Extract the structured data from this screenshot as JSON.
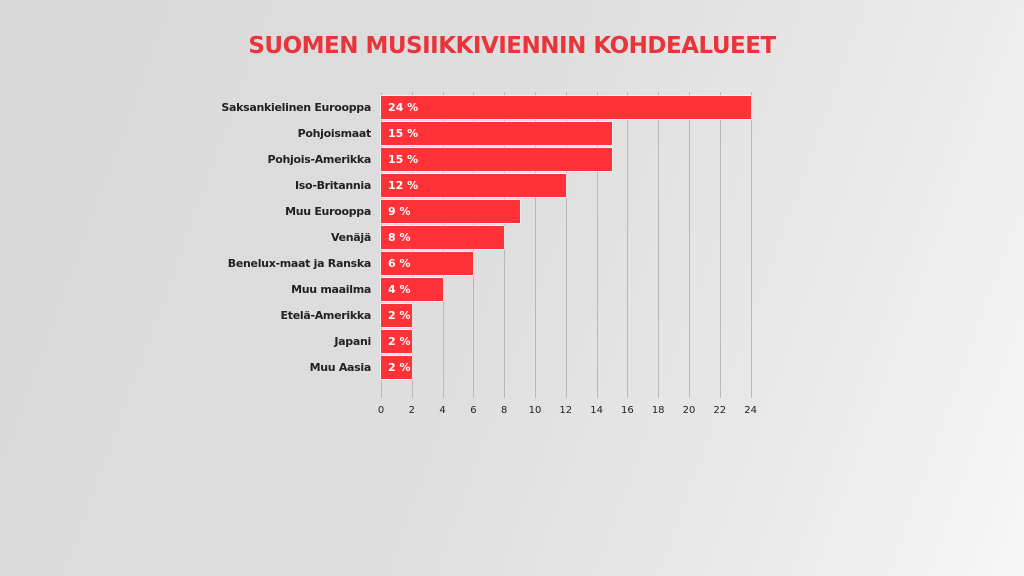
{
  "title": "SUOMEN MUSIIKKIVIENNIN KOHDEALUEET",
  "colors": {
    "bar": "#ff3237",
    "title": "#e8343a",
    "grid": "#b9b9b9"
  },
  "chart_data": {
    "type": "bar",
    "orientation": "horizontal",
    "title": "SUOMEN MUSIIKKIVIENNIN KOHDEALUEET",
    "xlabel": "",
    "ylabel": "",
    "xlim": [
      0,
      24
    ],
    "grid": true,
    "categories": [
      "Saksankielinen Eurooppa",
      "Pohjoismaat",
      "Pohjois-Amerikka",
      "Iso-Britannia",
      "Muu Eurooppa",
      "Venäjä",
      "Benelux-maat ja Ranska",
      "Muu maailma",
      "Etelä-Amerikka",
      "Japani",
      "Muu Aasia"
    ],
    "values": [
      24,
      15,
      15,
      12,
      9,
      8,
      6,
      4,
      2,
      2,
      2
    ],
    "value_labels": [
      "24 %",
      "15 %",
      "15 %",
      "12 %",
      "9 %",
      "8 %",
      "6 %",
      "4 %",
      "2 %",
      "2 %",
      "2 %"
    ],
    "x_ticks": [
      "0",
      "2",
      "4",
      "6",
      "8",
      "10",
      "12",
      "14",
      "16",
      "18",
      "20",
      "22",
      "24"
    ]
  }
}
